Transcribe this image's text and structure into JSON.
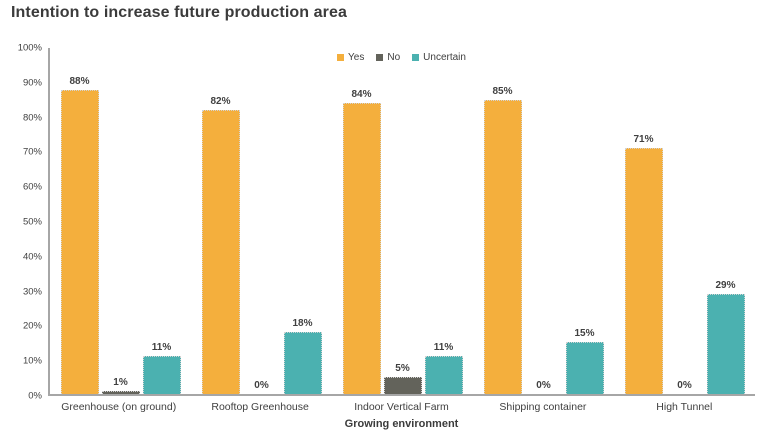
{
  "chart_data": {
    "type": "bar",
    "title": "Intention to increase future production area",
    "xlabel": "Growing environment",
    "ylabel": "",
    "categories": [
      "Greenhouse (on ground)",
      "Rooftop Greenhouse",
      "Indoor Vertical Farm",
      "Shipping container",
      "High Tunnel"
    ],
    "series": [
      {
        "name": "Yes",
        "color": "#F4AF3D",
        "values": [
          88,
          82,
          84,
          85,
          71
        ]
      },
      {
        "name": "No",
        "color": "#63635B",
        "values": [
          1,
          0,
          5,
          0,
          0
        ]
      },
      {
        "name": "Uncertain",
        "color": "#4BB1B0",
        "values": [
          11,
          18,
          11,
          15,
          29
        ]
      }
    ],
    "value_label_format": "percent",
    "ylim": [
      0,
      100
    ],
    "yticks": [
      0,
      10,
      20,
      30,
      40,
      50,
      60,
      70,
      80,
      90,
      100
    ],
    "ytick_labels": [
      "0%",
      "10%",
      "20%",
      "30%",
      "40%",
      "50%",
      "60%",
      "70%",
      "80%",
      "90%",
      "100%"
    ],
    "grid": false,
    "legend_position": "top-center",
    "colors": {
      "axis_line": "#a6a6a6",
      "text": "#404040",
      "title_text": "#3b3b3b",
      "background": "#ffffff"
    }
  }
}
